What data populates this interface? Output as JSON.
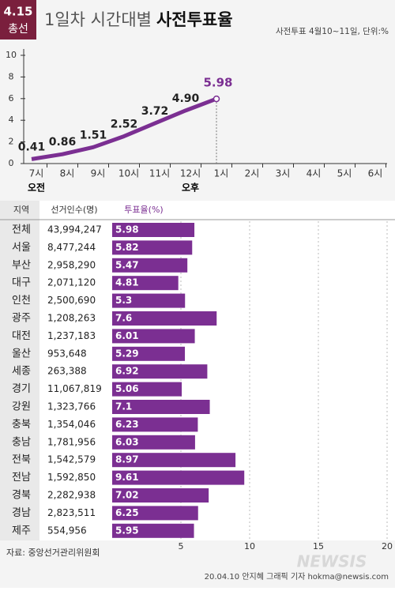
{
  "header": {
    "badge_top": "4.15",
    "badge_bottom": "총선",
    "title_light": "1일차 시간대별",
    "title_bold": "사전투표율",
    "subtitle": "사전투표 4월10~11일, 단위:%"
  },
  "chart_data": [
    {
      "type": "line",
      "categories": [
        "7시",
        "8시",
        "9시",
        "10시",
        "11시",
        "12시",
        "1시",
        "2시",
        "3시",
        "4시",
        "5시",
        "6시"
      ],
      "am_label": "오전",
      "pm_label": "오후",
      "values": [
        0.41,
        0.86,
        1.51,
        2.52,
        3.72,
        4.9,
        5.98,
        null,
        null,
        null,
        null,
        null
      ],
      "value_labels": [
        "0.41",
        "0.86",
        "1.51",
        "2.52",
        "3.72",
        "4.90",
        "5.98",
        null,
        null,
        null,
        null,
        null
      ],
      "color": "#7b2f92",
      "ylim": [
        0,
        10
      ],
      "yticks": [
        0,
        2,
        4,
        6,
        8,
        10
      ]
    },
    {
      "type": "bar",
      "column_headers": [
        "지역",
        "선거인수(명)",
        "투표율(%)"
      ],
      "categories": [
        "전체",
        "서울",
        "부산",
        "대구",
        "인천",
        "광주",
        "대전",
        "울산",
        "세종",
        "경기",
        "강원",
        "충북",
        "충남",
        "전북",
        "전남",
        "경북",
        "경남",
        "제주"
      ],
      "voters": [
        "43,994,247",
        "8,477,244",
        "2,958,290",
        "2,071,120",
        "2,500,690",
        "1,208,263",
        "1,237,183",
        "953,648",
        "263,388",
        "11,067,819",
        "1,323,766",
        "1,354,046",
        "1,781,956",
        "1,542,579",
        "1,592,850",
        "2,282,938",
        "2,823,511",
        "554,956"
      ],
      "values": [
        5.98,
        5.82,
        5.47,
        4.81,
        5.3,
        7.6,
        6.01,
        5.29,
        6.92,
        5.06,
        7.1,
        6.23,
        6.03,
        8.97,
        9.61,
        7.02,
        6.25,
        5.95
      ],
      "color": "#7b2f92",
      "xlim": [
        0,
        20
      ],
      "xticks": [
        5,
        10,
        15,
        20
      ],
      "grid": true
    }
  ],
  "footer": {
    "source": "자료: 중앙선거관리위원회",
    "credit": "20.04.10 안지혜 그래픽 기자 hokma@newsis.com",
    "logo": "NEWSIS"
  }
}
